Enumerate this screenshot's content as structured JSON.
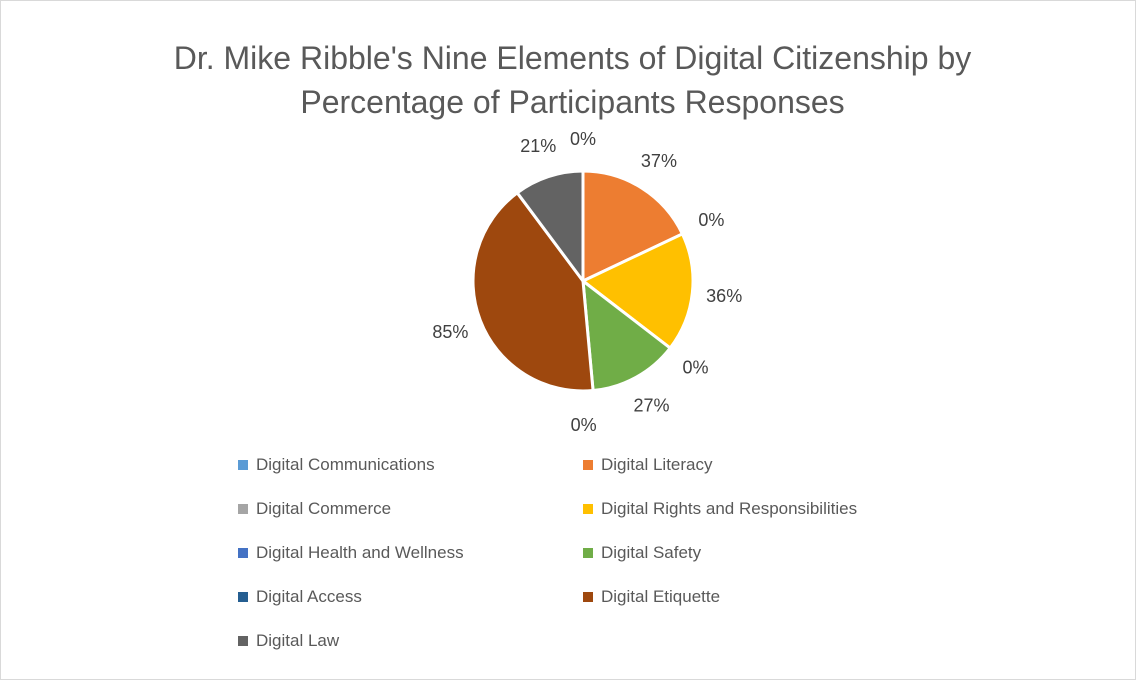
{
  "chart_data": {
    "type": "pie",
    "title": "Dr. Mike Ribble's Nine Elements of Digital Citizenship by\nPercentage of Participants Responses",
    "categories": [
      "Digital Communications",
      "Digital Literacy",
      "Digital Commerce",
      "Digital Rights and Responsibilities",
      "Digital Health and Wellness",
      "Digital Safety",
      "Digital Access",
      "Digital Etiquette",
      "Digital Law"
    ],
    "values": [
      0,
      37,
      0,
      36,
      0,
      27,
      0,
      85,
      21
    ],
    "data_labels": [
      "0%",
      "37%",
      "0%",
      "36%",
      "0%",
      "27%",
      "0%",
      "85%",
      "21%"
    ],
    "colors": [
      "#5b9bd5",
      "#ed7d31",
      "#a5a5a5",
      "#ffc000",
      "#4472c4",
      "#70ad47",
      "#255e91",
      "#9e480e",
      "#636363"
    ],
    "legend_position": "bottom"
  }
}
